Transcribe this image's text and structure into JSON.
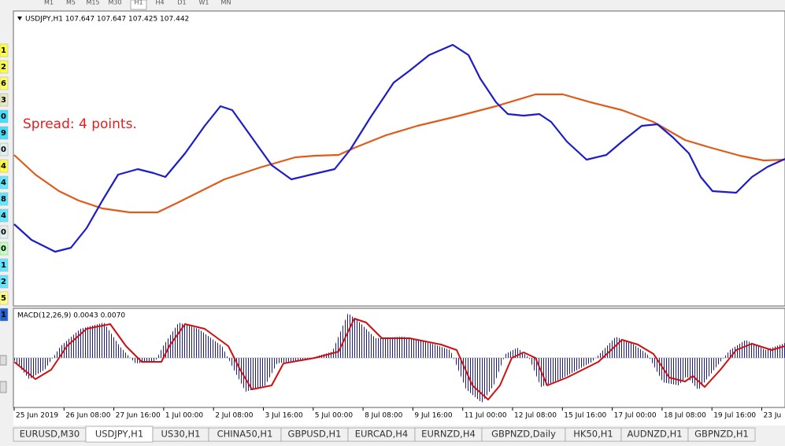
{
  "toolbar": {
    "timeframes": [
      "M1",
      "M5",
      "M15",
      "M30",
      "H1",
      "H4",
      "D1",
      "W1",
      "MN"
    ]
  },
  "main_chart": {
    "header": "USDJPY,H1  107.647 107.647 107.425 107.442",
    "spread_label": "Spread: 4 points."
  },
  "macd_panel": {
    "header": "MACD(12,26,9) 0.0043 0.0070"
  },
  "x_axis_labels": [
    "25 Jun 2019",
    "26 Jun 08:00",
    "27 Jun 16:00",
    "1 Jul 00:00",
    "2 Jul 08:00",
    "3 Jul 16:00",
    "5 Jul 00:00",
    "8 Jul 08:00",
    "9 Jul 16:00",
    "11 Jul 00:00",
    "12 Jul 08:00",
    "15 Jul 16:00",
    "17 Jul 00:00",
    "18 Jul 08:00",
    "19 Jul 16:00",
    "23 Ju"
  ],
  "tabs": [
    "EURUSD,M30",
    "USDJPY,H1",
    "US30,H1",
    "CHINA50,H1",
    "GBPUSD,H1",
    "EURCAD,H4",
    "EURNZD,H4",
    "GBPNZD,Daily",
    "HK50,H1",
    "AUDNZD,H1",
    "GBPNZD,H1"
  ],
  "active_tab": 1,
  "left_strip": [
    {
      "label": "1",
      "color": "#ffff40"
    },
    {
      "label": "2",
      "color": "#ffff40"
    },
    {
      "label": "6",
      "color": "#ffff60"
    },
    {
      "label": "3",
      "color": "#e8e8c0"
    },
    {
      "label": "0",
      "color": "#40e0ff"
    },
    {
      "label": "9",
      "color": "#40e0ff"
    },
    {
      "label": "0",
      "color": "#e0f0f0"
    },
    {
      "label": "4",
      "color": "#ffff40"
    },
    {
      "label": "4",
      "color": "#60e8ff"
    },
    {
      "label": "8",
      "color": "#60e8ff"
    },
    {
      "label": "4",
      "color": "#60e8ff"
    },
    {
      "label": "0",
      "color": "#e0f0f0"
    },
    {
      "label": "0",
      "color": "#c0ffc0"
    },
    {
      "label": "1",
      "color": "#60e8ff"
    },
    {
      "label": "2",
      "color": "#60e8ff"
    },
    {
      "label": "5",
      "color": "#ffff80"
    },
    {
      "label": "1",
      "color": "#2060d0"
    }
  ]
}
